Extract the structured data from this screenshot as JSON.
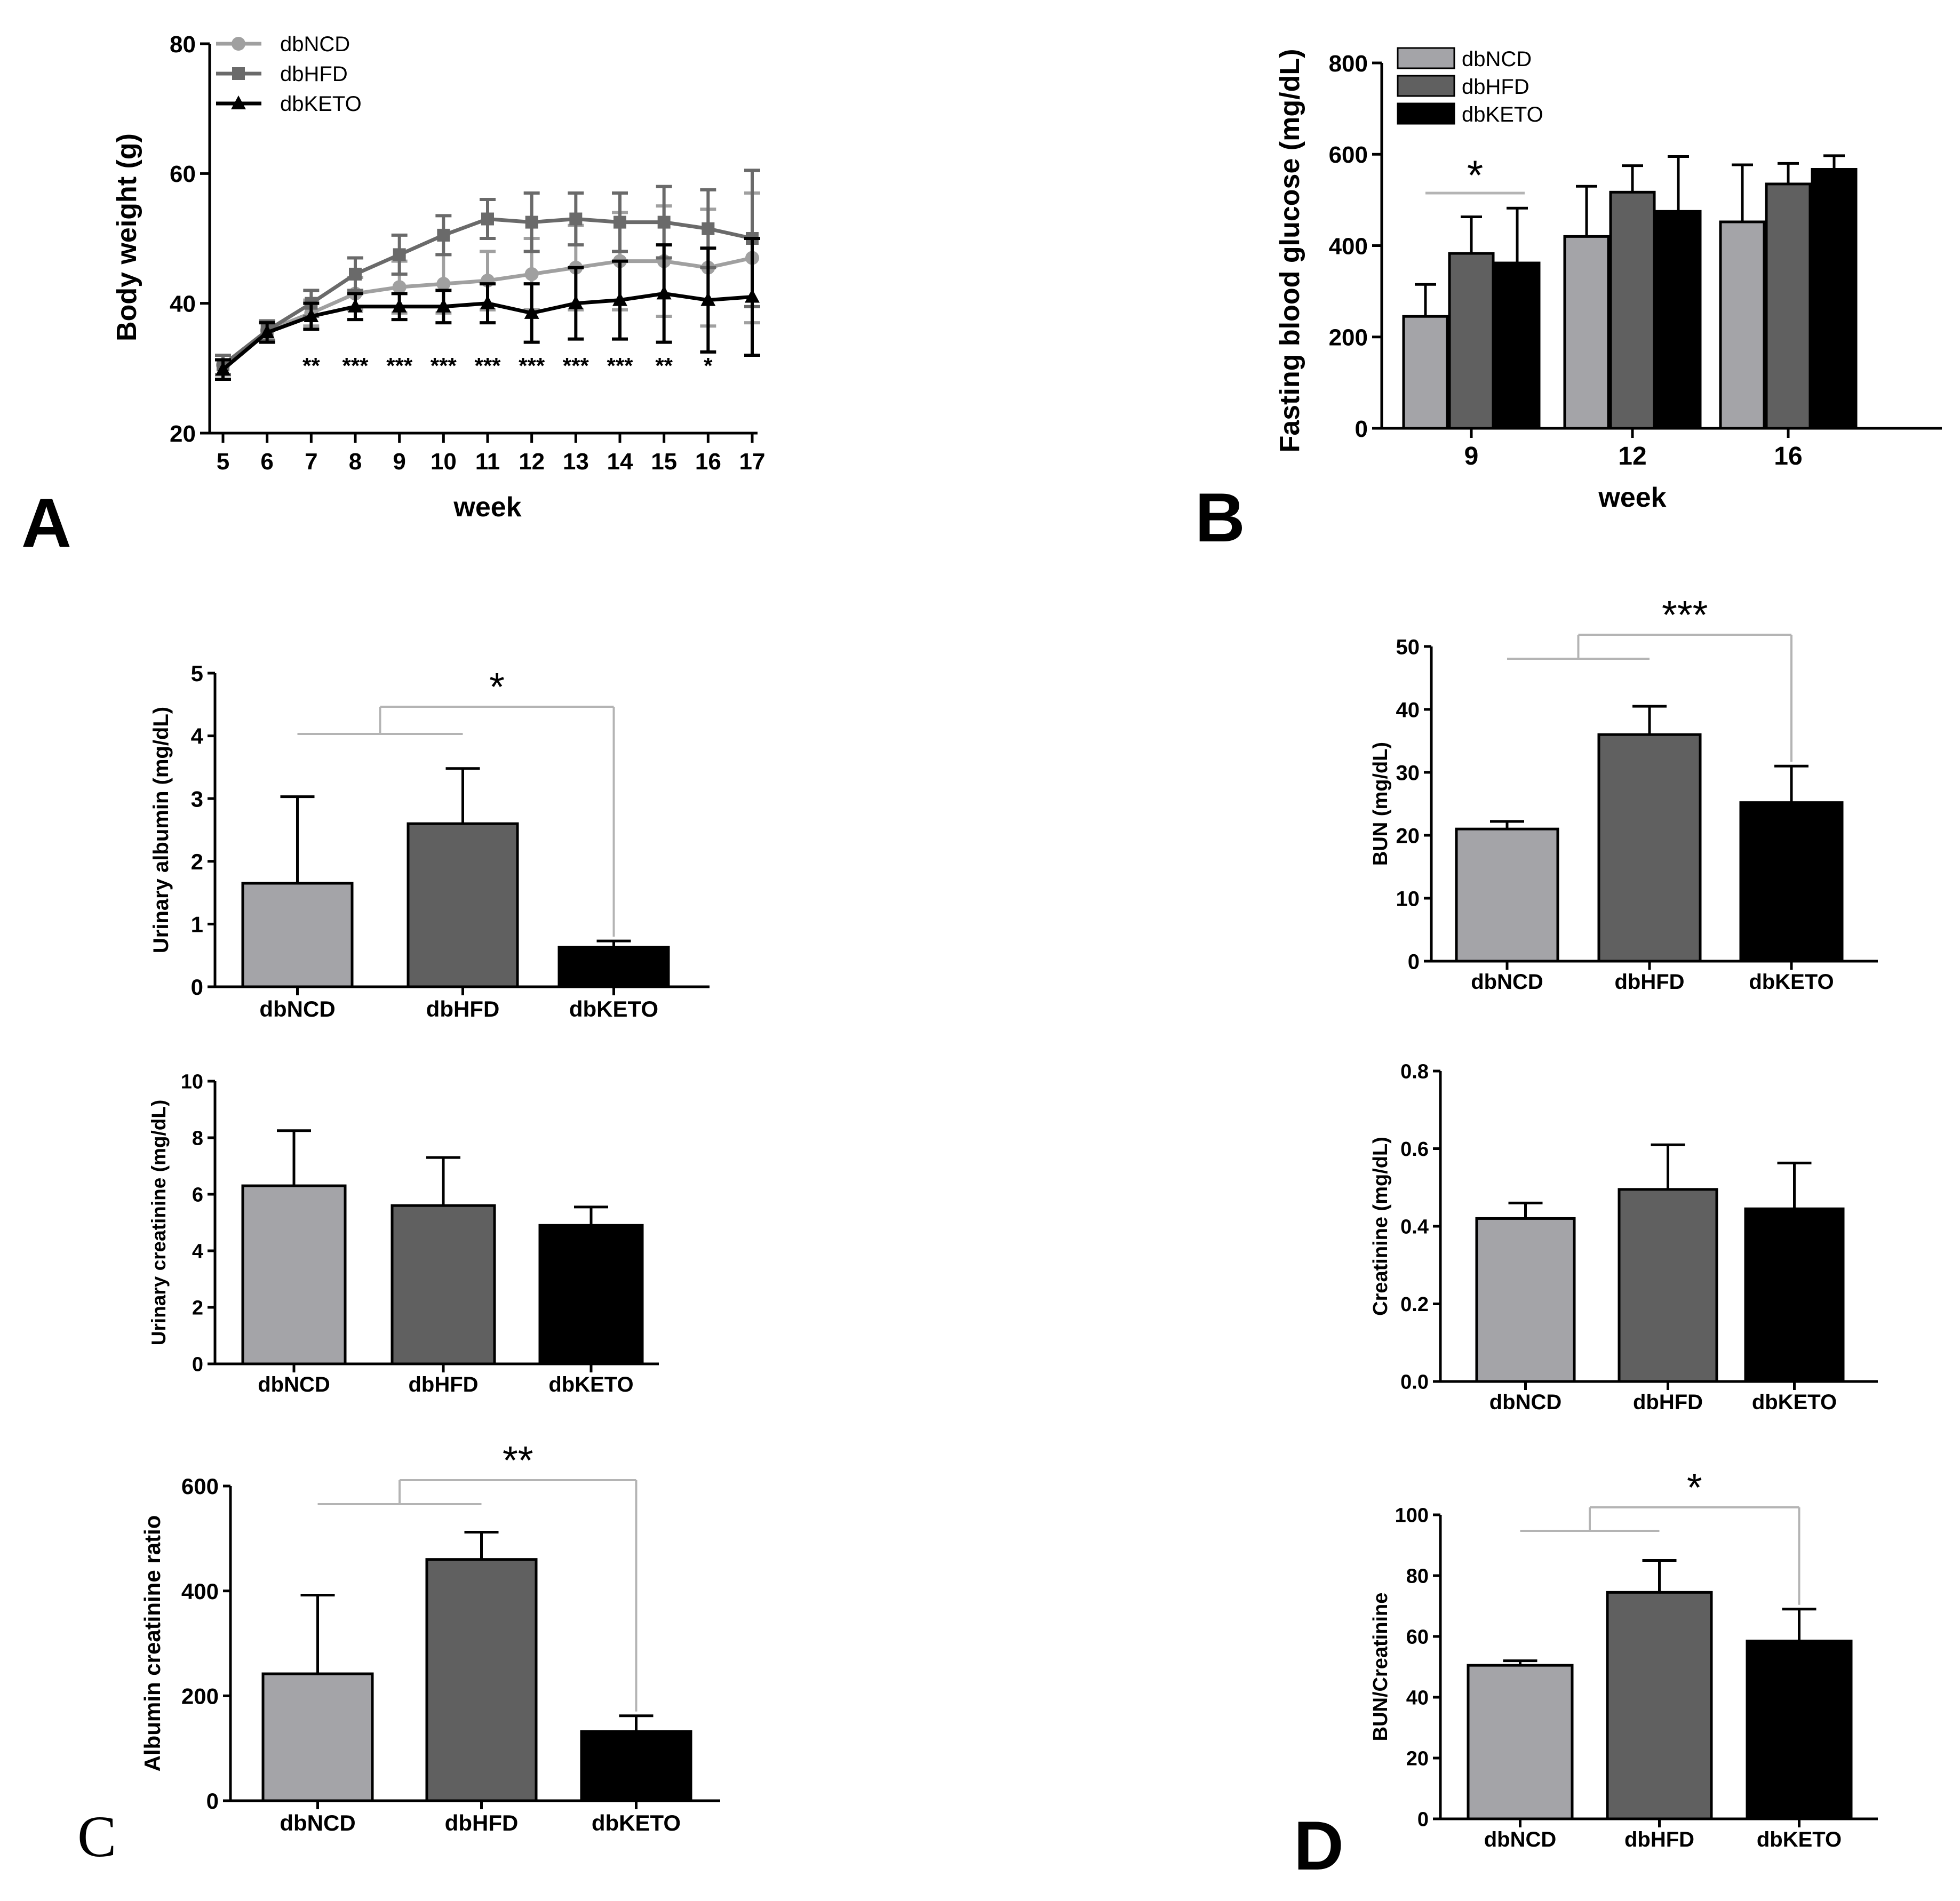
{
  "panels": {
    "a": "A",
    "b": "B",
    "c": "C",
    "d": "D"
  },
  "colors": {
    "ncd": "#a4a4a8",
    "hfd": "#606060",
    "keto": "#000000",
    "sig": "#b4b4b4"
  },
  "chart_data": [
    {
      "id": "A",
      "type": "line",
      "title": "",
      "xlabel": "week",
      "ylabel": "Body weight  (g)",
      "x": [
        5,
        6,
        7,
        8,
        9,
        10,
        11,
        12,
        13,
        14,
        15,
        16,
        17
      ],
      "xlim": [
        5,
        17
      ],
      "ylim": [
        20,
        80
      ],
      "yticks": [
        20,
        40,
        60,
        80
      ],
      "legend": "top-left",
      "series": [
        {
          "name": "dbNCD",
          "color": "#a0a0a0",
          "marker": "circle",
          "values": [
            30.5,
            35.8,
            38.5,
            41.5,
            42.5,
            43,
            43.5,
            44.5,
            45.5,
            46.5,
            46.5,
            45.5,
            47
          ],
          "errors": [
            1.5,
            1.5,
            2.0,
            2.5,
            4,
            4.5,
            4.5,
            5.5,
            6.5,
            7.5,
            8.5,
            9,
            10
          ]
        },
        {
          "name": "dbHFD",
          "color": "#6a6a6a",
          "marker": "square",
          "values": [
            30.5,
            35.8,
            40,
            44.5,
            47.5,
            50.5,
            53,
            52.5,
            53,
            52.5,
            52.5,
            51.5,
            50
          ],
          "errors": [
            1.5,
            1.5,
            2,
            2.5,
            3,
            3,
            3,
            4.5,
            4,
            4.5,
            5.5,
            6,
            10.5
          ]
        },
        {
          "name": "dbKETO",
          "color": "#000000",
          "marker": "triangle",
          "values": [
            29.8,
            35.5,
            38,
            39.5,
            39.5,
            39.5,
            40,
            38.5,
            40,
            40.5,
            41.5,
            40.5,
            41
          ],
          "errors": [
            1.5,
            1.5,
            2,
            2,
            2,
            2.5,
            3,
            4.5,
            5.5,
            6,
            7.5,
            8,
            9
          ]
        }
      ],
      "annotations": [
        {
          "week": 7,
          "text": "**"
        },
        {
          "week": 8,
          "text": "***"
        },
        {
          "week": 9,
          "text": "***"
        },
        {
          "week": 10,
          "text": "***"
        },
        {
          "week": 11,
          "text": "***"
        },
        {
          "week": 12,
          "text": "***"
        },
        {
          "week": 13,
          "text": "***"
        },
        {
          "week": 14,
          "text": "***"
        },
        {
          "week": 15,
          "text": "**"
        },
        {
          "week": 16,
          "text": "*"
        }
      ]
    },
    {
      "id": "B",
      "type": "bar",
      "title": "",
      "xlabel": "week",
      "ylabel": "Fasting blood glucose (mg/dL)",
      "categories": [
        "9",
        "12",
        "16"
      ],
      "ylim": [
        0,
        800
      ],
      "yticks": [
        0,
        200,
        400,
        600,
        800
      ],
      "legend": "top-left",
      "series": [
        {
          "name": "dbNCD",
          "values": [
            245,
            420,
            452
          ],
          "errors": [
            70,
            110,
            125
          ]
        },
        {
          "name": "dbHFD",
          "values": [
            383,
            517,
            535
          ],
          "errors": [
            80,
            58,
            45
          ]
        },
        {
          "name": "dbKETO",
          "values": [
            362,
            475,
            567
          ],
          "errors": [
            120,
            120,
            30
          ]
        }
      ],
      "annotation": {
        "text": "*",
        "category": "9"
      }
    },
    {
      "id": "C1",
      "type": "bar",
      "xlabel": "",
      "ylabel": "Urinary albumin (mg/dL)",
      "categories": [
        "dbNCD",
        "dbHFD",
        "dbKETO"
      ],
      "values": [
        1.65,
        2.6,
        0.63
      ],
      "errors": [
        1.38,
        0.88,
        0.1
      ],
      "ylim": [
        0,
        5
      ],
      "yticks": [
        0,
        1,
        2,
        3,
        4,
        5
      ],
      "significance": "*"
    },
    {
      "id": "C2",
      "type": "bar",
      "xlabel": "",
      "ylabel": "Urinary creatinine (mg/dL)",
      "categories": [
        "dbNCD",
        "dbHFD",
        "dbKETO"
      ],
      "values": [
        6.3,
        5.6,
        4.9
      ],
      "errors": [
        1.95,
        1.7,
        0.65
      ],
      "ylim": [
        0,
        10
      ],
      "yticks": [
        0,
        2,
        4,
        6,
        8,
        10
      ],
      "significance": ""
    },
    {
      "id": "C3",
      "type": "bar",
      "xlabel": "",
      "ylabel": "Albumin creatinine ratio",
      "categories": [
        "dbNCD",
        "dbHFD",
        "dbKETO"
      ],
      "values": [
        242,
        460,
        132
      ],
      "errors": [
        150,
        52,
        30
      ],
      "ylim": [
        0,
        600
      ],
      "yticks": [
        0,
        200,
        400,
        600
      ],
      "significance": "**"
    },
    {
      "id": "D1",
      "type": "bar",
      "xlabel": "",
      "ylabel": "BUN  (mg/dL)",
      "categories": [
        "dbNCD",
        "dbHFD",
        "dbKETO"
      ],
      "values": [
        21,
        36,
        25.2
      ],
      "errors": [
        1.2,
        4.5,
        5.8
      ],
      "ylim": [
        0,
        50
      ],
      "yticks": [
        0,
        10,
        20,
        30,
        40,
        50
      ],
      "significance": "***"
    },
    {
      "id": "D2",
      "type": "bar",
      "xlabel": "",
      "ylabel": "Creatinine  (mg/dL)",
      "categories": [
        "dbNCD",
        "dbHFD",
        "dbKETO"
      ],
      "values": [
        0.42,
        0.495,
        0.445
      ],
      "errors": [
        0.04,
        0.115,
        0.118
      ],
      "ylim": [
        0,
        0.8
      ],
      "yticks": [
        0.0,
        0.2,
        0.4,
        0.6,
        0.8
      ],
      "ytick_decimals": 1,
      "significance": ""
    },
    {
      "id": "D3",
      "type": "bar",
      "xlabel": "",
      "ylabel": "BUN/Creatinine",
      "categories": [
        "dbNCD",
        "dbHFD",
        "dbKETO"
      ],
      "values": [
        50.5,
        74.5,
        58.5
      ],
      "errors": [
        1.5,
        10.5,
        10.5
      ],
      "ylim": [
        0,
        100
      ],
      "yticks": [
        0,
        20,
        40,
        60,
        80,
        100
      ],
      "significance": "*"
    }
  ]
}
